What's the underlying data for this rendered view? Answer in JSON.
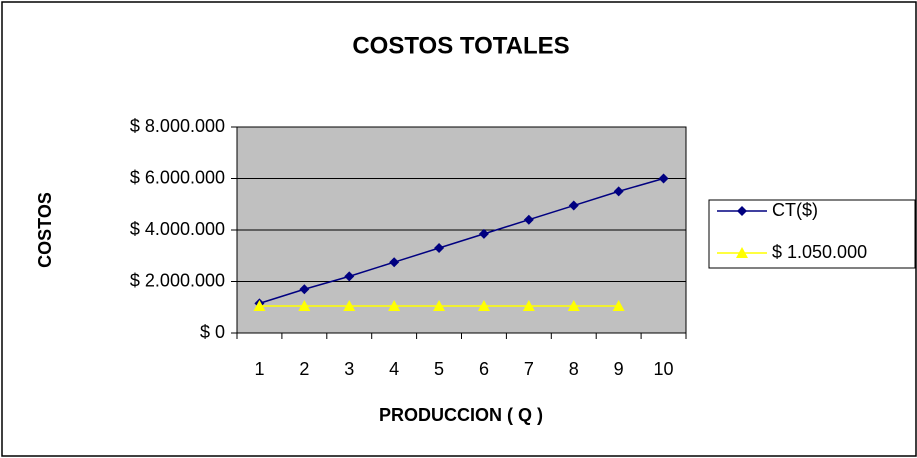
{
  "chart_data": {
    "type": "line",
    "title": "COSTOS TOTALES",
    "x_label": "PRODUCCION ( Q )",
    "y_label": "COSTOS",
    "categories": [
      1,
      2,
      3,
      4,
      5,
      6,
      7,
      8,
      9,
      10
    ],
    "series": [
      {
        "name": "CT($)",
        "color": "#000080",
        "marker": "diamond",
        "values": [
          1150000,
          1700000,
          2200000,
          2750000,
          3300000,
          3850000,
          4400000,
          4950000,
          5500000,
          6000000
        ]
      },
      {
        "name": "$ 1.050.000",
        "color": "#ffff00",
        "marker": "triangle",
        "values": [
          1050000,
          1050000,
          1050000,
          1050000,
          1050000,
          1050000,
          1050000,
          1050000,
          1050000,
          null
        ]
      }
    ],
    "ylim": [
      0,
      8000000
    ],
    "yticks": [
      {
        "value": 0,
        "label": "$ 0"
      },
      {
        "value": 2000000,
        "label": "$ 2.000.000"
      },
      {
        "value": 4000000,
        "label": "$ 4.000.000"
      },
      {
        "value": 6000000,
        "label": "$ 6.000.000"
      },
      {
        "value": 8000000,
        "label": "$ 8.000.000"
      }
    ],
    "grid": true,
    "legend": "right",
    "plot_background": "#c0c0c0"
  }
}
